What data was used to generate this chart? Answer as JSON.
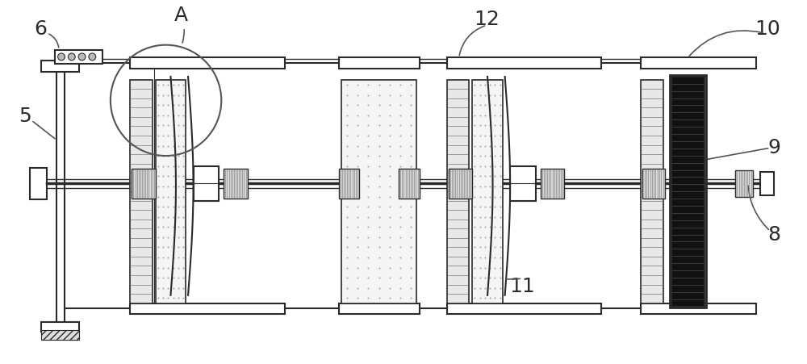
{
  "bg_color": "#ffffff",
  "lc": "#2a2a2a",
  "gray": "#888888",
  "lgray": "#cccccc",
  "dgray": "#444444",
  "label_fs": 16,
  "figsize": [
    10.0,
    4.51
  ],
  "dpi": 100
}
